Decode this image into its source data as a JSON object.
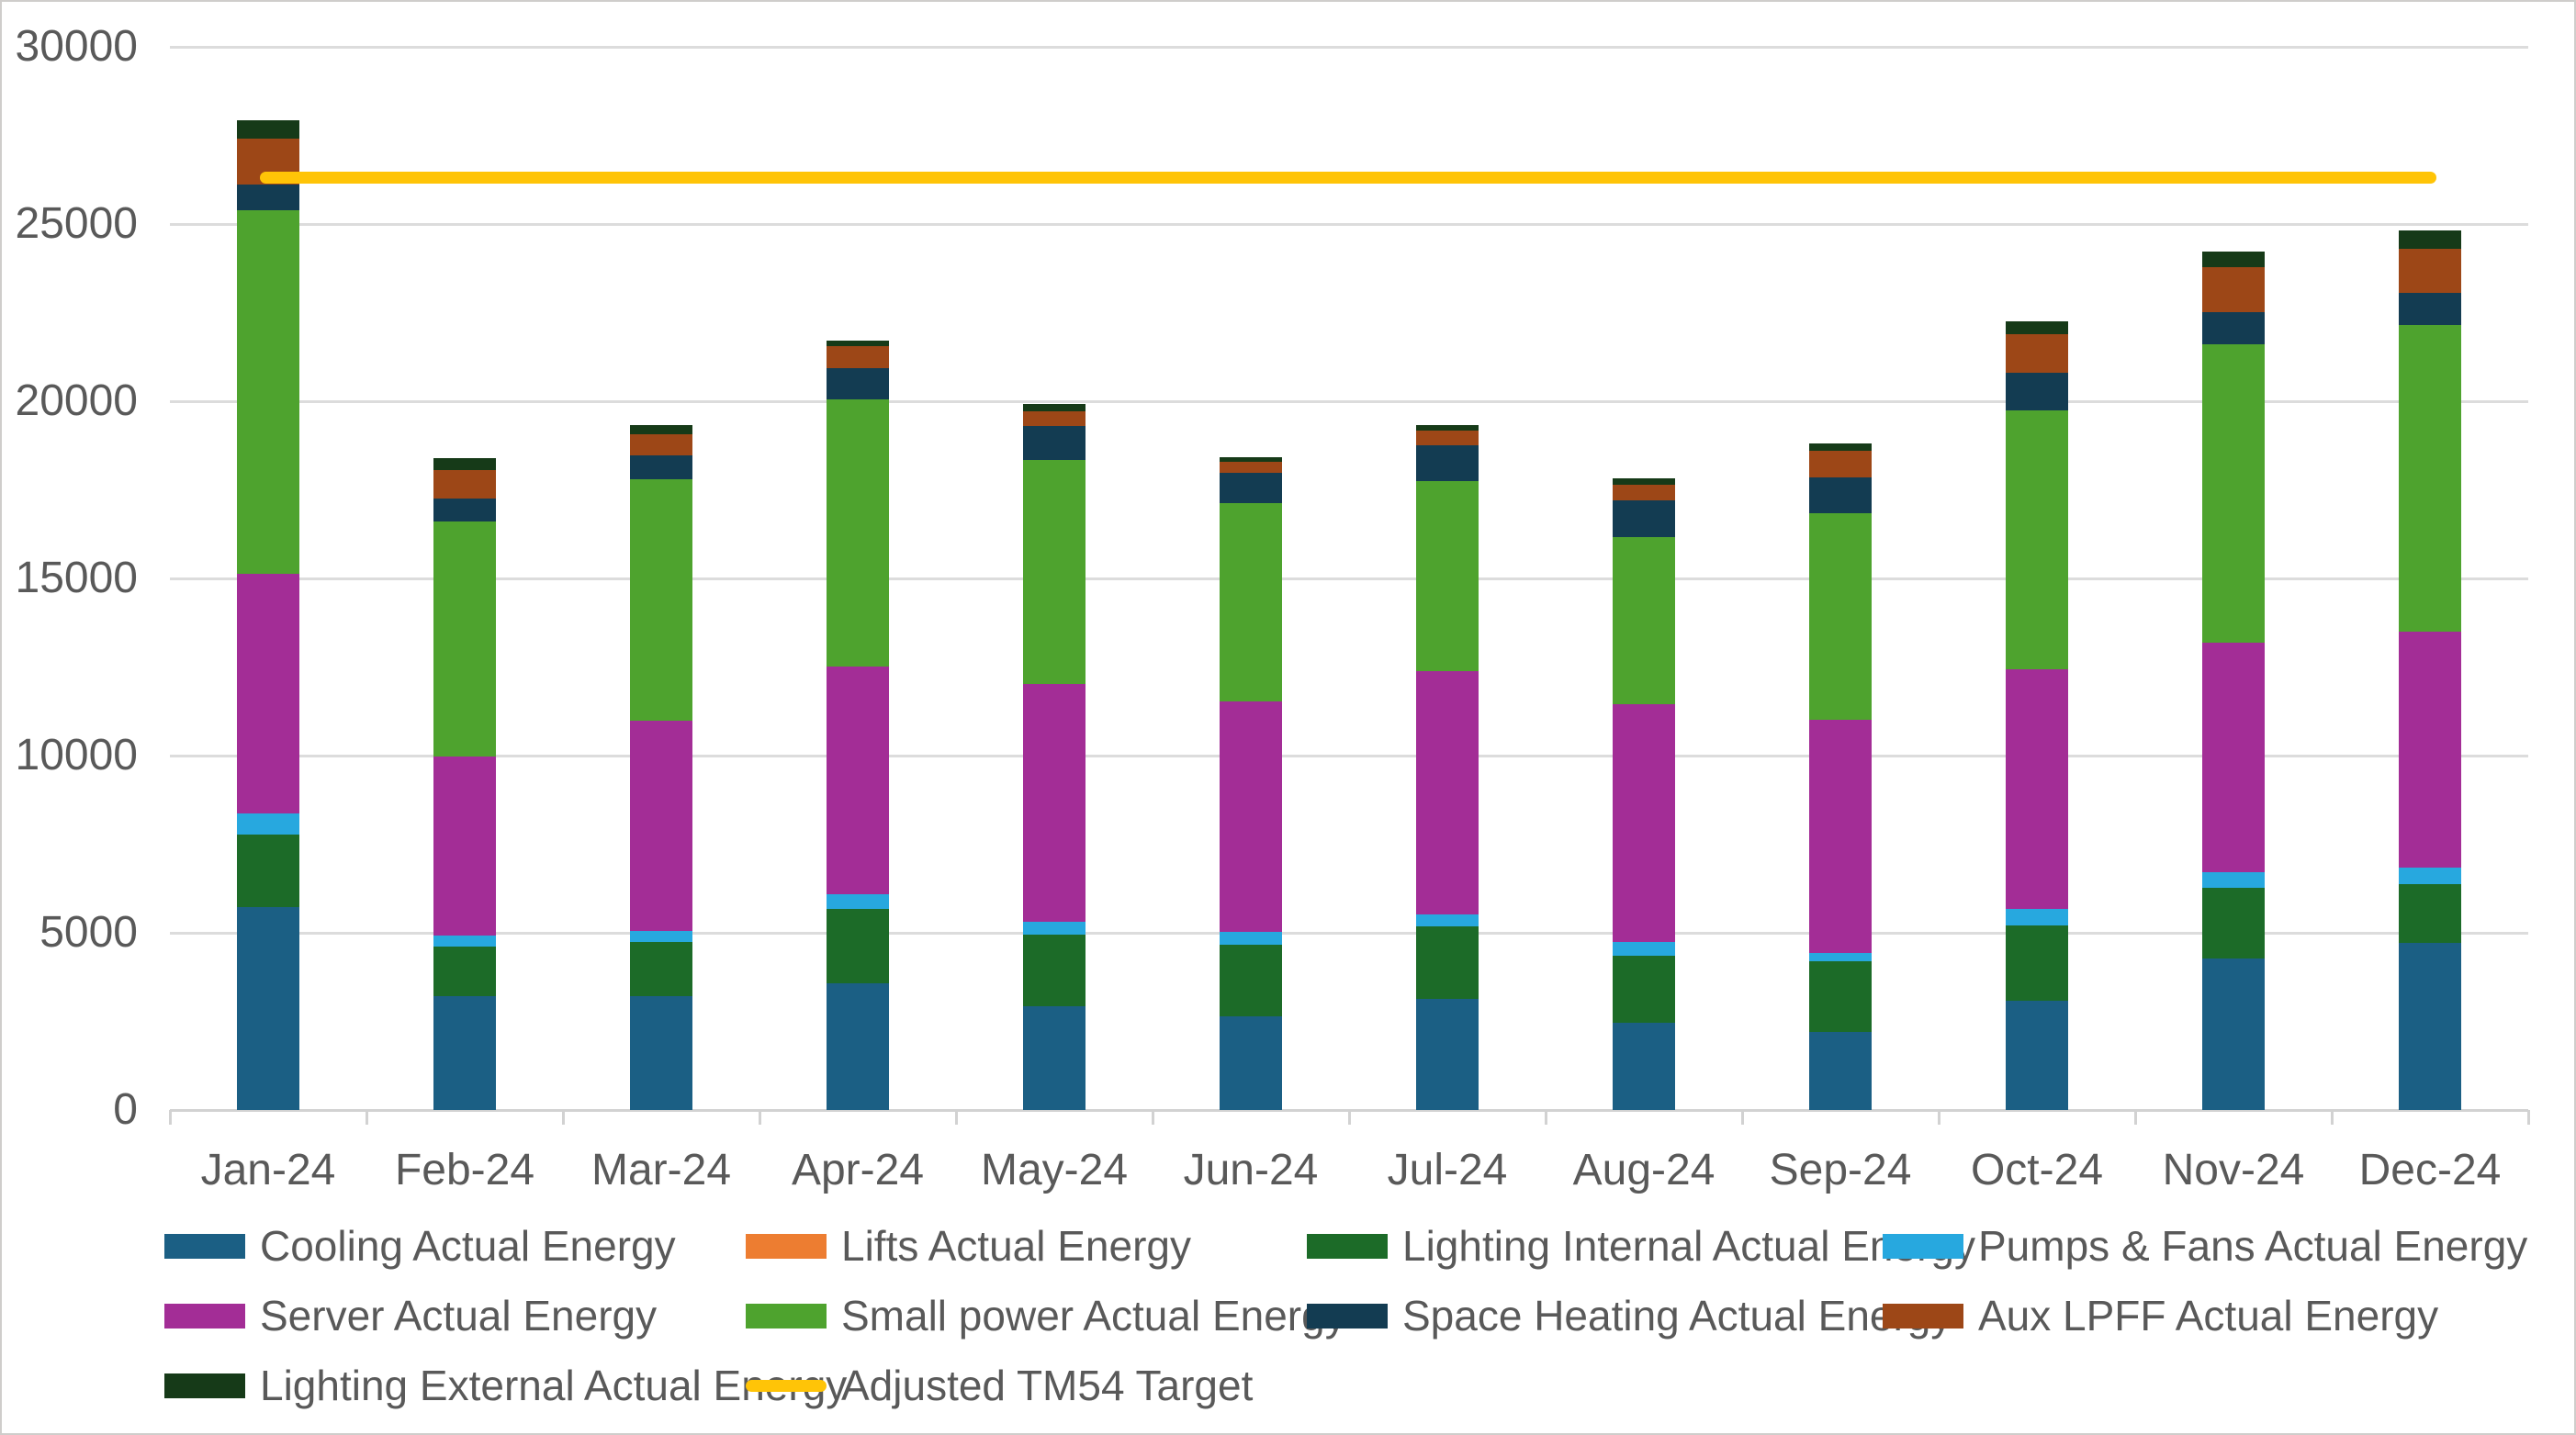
{
  "chart_data": {
    "type": "bar",
    "subtype": "stacked-bar-with-target-line",
    "title": "",
    "xlabel": "",
    "ylabel": "",
    "ylim": [
      0,
      30000
    ],
    "y_tick_step": 5000,
    "y_tick_labels": [
      "30000",
      "25000",
      "20000",
      "15000",
      "10000",
      "5000",
      "0"
    ],
    "grid": true,
    "legend_position": "bottom",
    "categories": [
      "Jan-24",
      "Feb-24",
      "Mar-24",
      "Apr-24",
      "May-24",
      "Jun-24",
      "Jul-24",
      "Aug-24",
      "Sep-24",
      "Oct-24",
      "Nov-24",
      "Dec-24"
    ],
    "series": [
      {
        "name": "Cooling Actual Energy",
        "color": "#1b5f84",
        "values": [
          5725,
          3220,
          3220,
          3565,
          2925,
          2640,
          3135,
          2470,
          2210,
          3075,
          4285,
          4715
        ]
      },
      {
        "name": "Lifts Actual Energy",
        "color": "#ed7d31",
        "values": [
          0,
          0,
          0,
          0,
          0,
          0,
          0,
          0,
          0,
          0,
          0,
          0
        ]
      },
      {
        "name": "Lighting Internal Actual Energy",
        "color": "#1c6b28",
        "values": [
          2055,
          1380,
          1520,
          2100,
          2025,
          2015,
          2040,
          1875,
          1990,
          2130,
          1985,
          1665
        ]
      },
      {
        "name": "Pumps & Fans Actual Energy",
        "color": "#27a8df",
        "values": [
          590,
          315,
          320,
          430,
          370,
          360,
          345,
          395,
          230,
          460,
          430,
          470
        ]
      },
      {
        "name": "Server Actual Energy",
        "color": "#a32d96",
        "values": [
          6760,
          5065,
          5915,
          6415,
          6690,
          6525,
          6860,
          6710,
          6570,
          6765,
          6480,
          6645
        ]
      },
      {
        "name": "Small power Actual Energy",
        "color": "#4ea32e",
        "values": [
          10250,
          6620,
          6825,
          7530,
          6330,
          5590,
          5370,
          4720,
          5830,
          7310,
          8435,
          8660
        ]
      },
      {
        "name": "Space Heating Actual Energy",
        "color": "#133c52",
        "values": [
          740,
          660,
          670,
          900,
          970,
          840,
          1010,
          1040,
          1010,
          1060,
          890,
          890
        ]
      },
      {
        "name": "Aux LPFF Actual Energy",
        "color": "#9d4717",
        "values": [
          1280,
          790,
          600,
          605,
          405,
          325,
          415,
          430,
          750,
          1080,
          1270,
          1245
        ]
      },
      {
        "name": "Lighting External Actual Energy",
        "color": "#163a18",
        "values": [
          520,
          350,
          260,
          155,
          200,
          125,
          155,
          175,
          225,
          365,
          455,
          520
        ]
      }
    ],
    "stack_totals": [
      27920,
      18400,
      19330,
      21700,
      19915,
      18420,
      19330,
      17815,
      18815,
      22245,
      24230,
      24810
    ],
    "target_line": {
      "name": "Adjusted TM54 Target",
      "color": "#ffc407",
      "value": 26300
    }
  },
  "legend": {
    "items": [
      {
        "label": "Cooling Actual Energy",
        "color": "#1b5f84",
        "swatch": "box"
      },
      {
        "label": "Lifts Actual Energy",
        "color": "#ed7d31",
        "swatch": "box"
      },
      {
        "label": "Lighting Internal Actual Energy",
        "color": "#1c6b28",
        "swatch": "box"
      },
      {
        "label": "Pumps & Fans Actual Energy",
        "color": "#27a8df",
        "swatch": "box"
      },
      {
        "label": "Server Actual Energy",
        "color": "#a32d96",
        "swatch": "box"
      },
      {
        "label": "Small power Actual Energy",
        "color": "#4ea32e",
        "swatch": "box"
      },
      {
        "label": "Space Heating Actual Energy",
        "color": "#133c52",
        "swatch": "box"
      },
      {
        "label": "Aux LPFF Actual Energy",
        "color": "#9d4717",
        "swatch": "box"
      },
      {
        "label": "Lighting External Actual Energy",
        "color": "#163a18",
        "swatch": "box"
      },
      {
        "label": "Adjusted TM54 Target",
        "color": "#ffc407",
        "swatch": "line"
      }
    ]
  }
}
